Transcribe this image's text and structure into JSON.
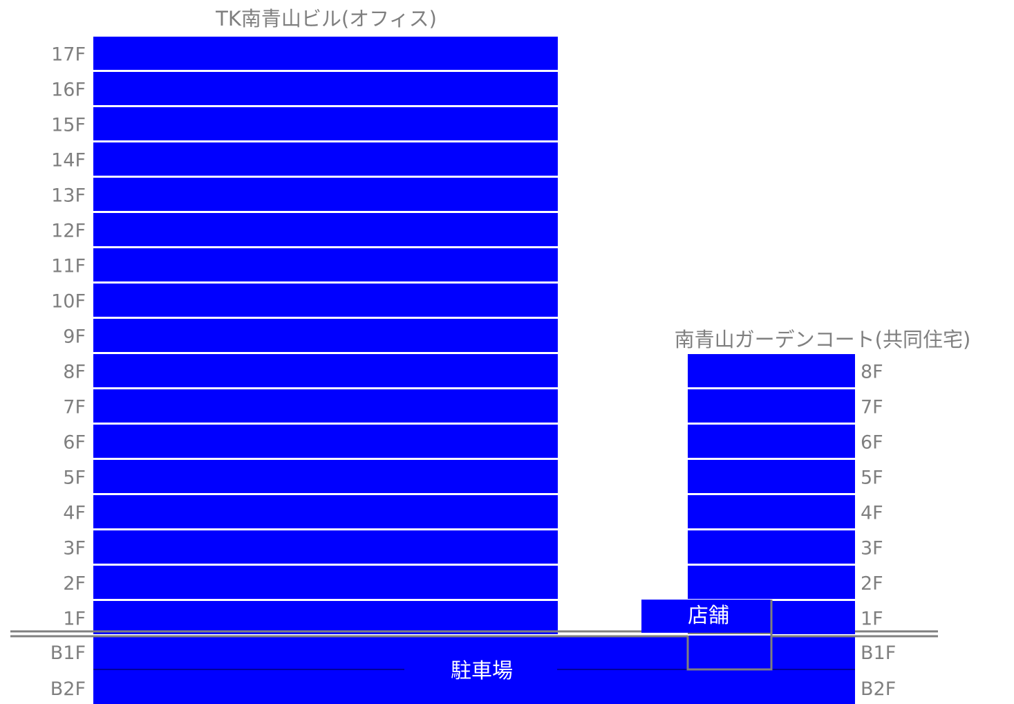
{
  "colors": {
    "block": "#0000ff",
    "line": "#7f7f7f",
    "text": "#7f7f7f",
    "inner_text": "#ffffff"
  },
  "office_building": {
    "title": "TK南青山ビル(オフィス)",
    "floors": [
      "17F",
      "16F",
      "15F",
      "14F",
      "13F",
      "12F",
      "11F",
      "10F",
      "9F",
      "8F",
      "7F",
      "6F",
      "5F",
      "4F",
      "3F",
      "2F",
      "1F"
    ],
    "basement_floors": [
      "B1F",
      "B2F"
    ]
  },
  "residential_building": {
    "title": "南青山ガーデンコート(共同住宅)",
    "floors": [
      "8F",
      "7F",
      "6F",
      "5F",
      "4F",
      "3F",
      "2F",
      "1F"
    ],
    "basement_floors": [
      "B1F",
      "B2F"
    ]
  },
  "shop_label": "店舗",
  "parking_label": "駐車場"
}
